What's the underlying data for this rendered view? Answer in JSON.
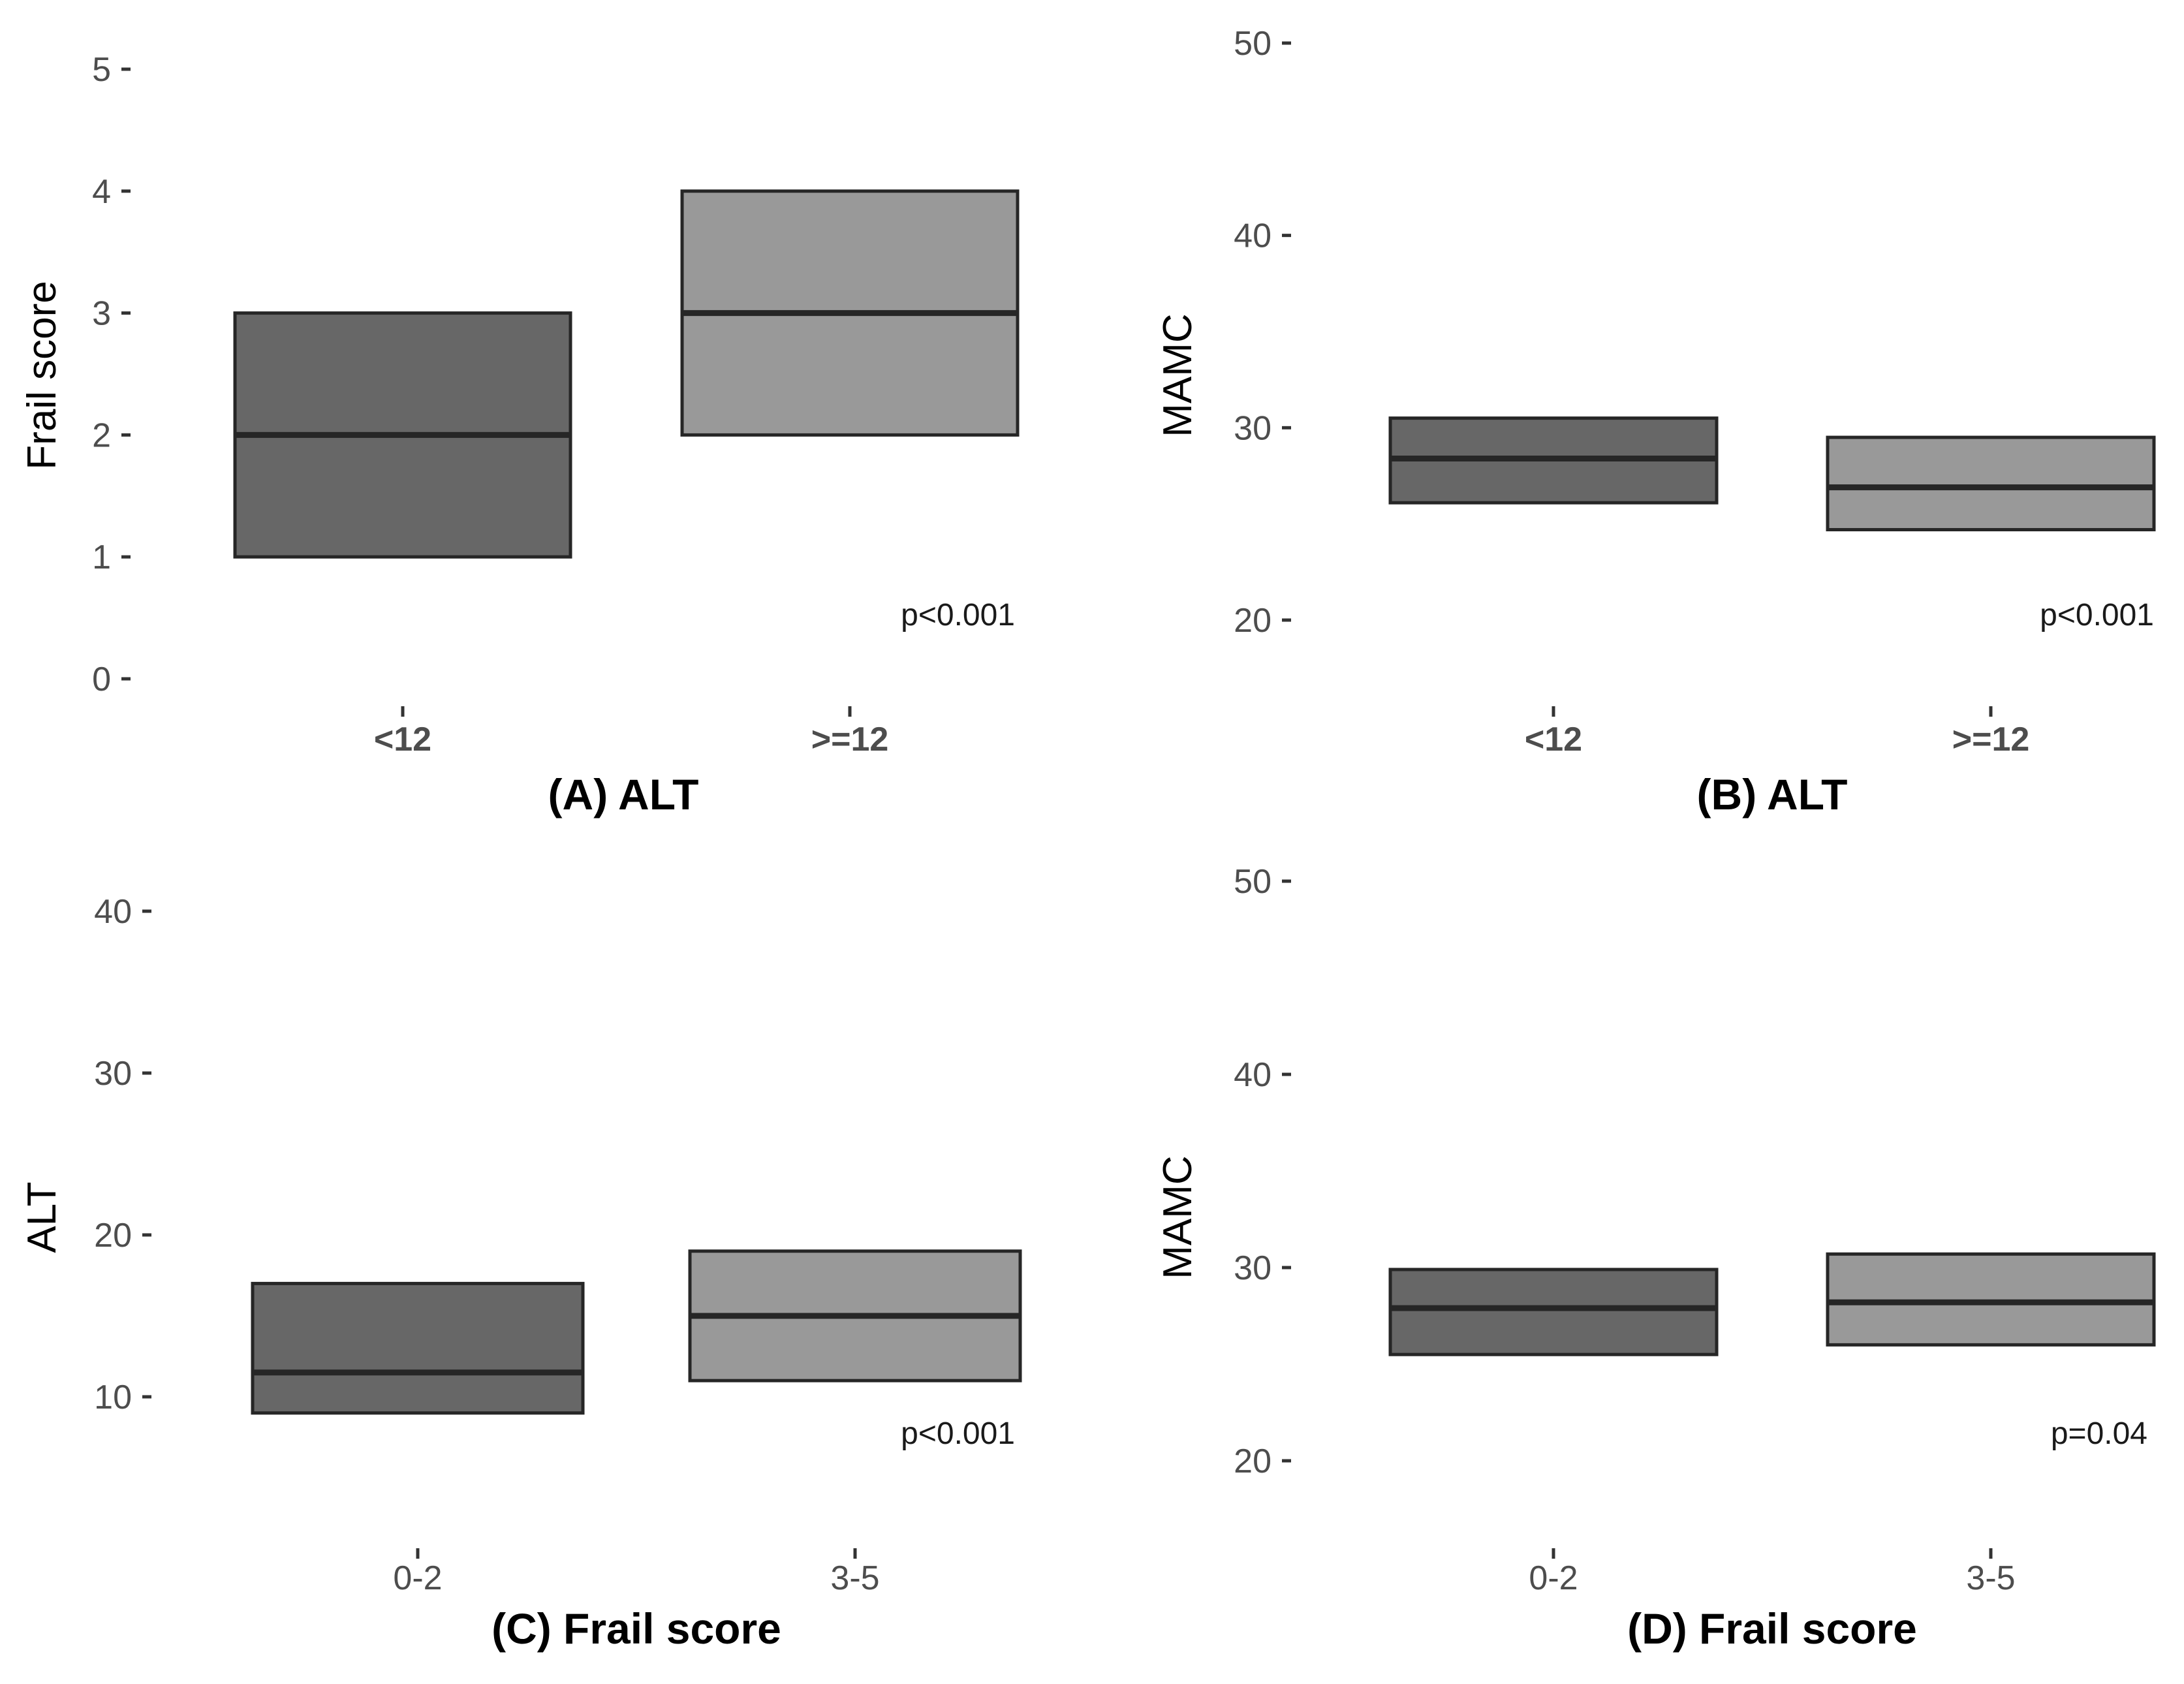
{
  "chart_data": [
    {
      "panel": "A",
      "type": "boxplot",
      "xlabel": "(A) ALT",
      "ylabel": "Frail score",
      "ylim": [
        0,
        5
      ],
      "yticks": [
        0,
        1,
        2,
        3,
        4,
        5
      ],
      "categories": [
        "<12",
        ">=12"
      ],
      "boxes": [
        {
          "q1": 1,
          "median": 2,
          "q3": 3
        },
        {
          "q1": 2,
          "median": 3,
          "q3": 4
        }
      ],
      "annotation": "p<0.001",
      "bold_ticks": true,
      "colors": [
        "#676767",
        "#999999"
      ]
    },
    {
      "panel": "B",
      "type": "boxplot",
      "xlabel": "(B) ALT",
      "ylabel": "MAMC",
      "ylim": [
        20,
        50
      ],
      "yticks": [
        20,
        30,
        40,
        50
      ],
      "categories": [
        "<12",
        ">=12"
      ],
      "boxes": [
        {
          "q1": 26.1,
          "median": 28.4,
          "q3": 30.5
        },
        {
          "q1": 24.7,
          "median": 26.9,
          "q3": 29.5
        }
      ],
      "annotation": "p<0.001",
      "bold_ticks": true,
      "colors": [
        "#676767",
        "#999999"
      ]
    },
    {
      "panel": "C",
      "type": "boxplot",
      "xlabel": "(C) Frail score",
      "ylabel": "ALT",
      "ylim": [
        10,
        40
      ],
      "yticks": [
        10,
        20,
        30,
        40
      ],
      "categories": [
        "0-2",
        "3-5"
      ],
      "boxes": [
        {
          "q1": 9,
          "median": 11.5,
          "q3": 17
        },
        {
          "q1": 11,
          "median": 15,
          "q3": 19
        }
      ],
      "annotation": "p<0.001",
      "bold_ticks": false,
      "colors": [
        "#676767",
        "#999999"
      ]
    },
    {
      "panel": "D",
      "type": "boxplot",
      "xlabel": "(D) Frail score",
      "ylabel": "MAMC",
      "ylim": [
        20,
        50
      ],
      "yticks": [
        20,
        30,
        40,
        50
      ],
      "categories": [
        "0-2",
        "3-5"
      ],
      "boxes": [
        {
          "q1": 25.5,
          "median": 27.9,
          "q3": 29.9
        },
        {
          "q1": 26.0,
          "median": 28.2,
          "q3": 30.7
        }
      ],
      "annotation": "p=0.04",
      "bold_ticks": false,
      "colors": [
        "#676767",
        "#999999"
      ]
    }
  ]
}
